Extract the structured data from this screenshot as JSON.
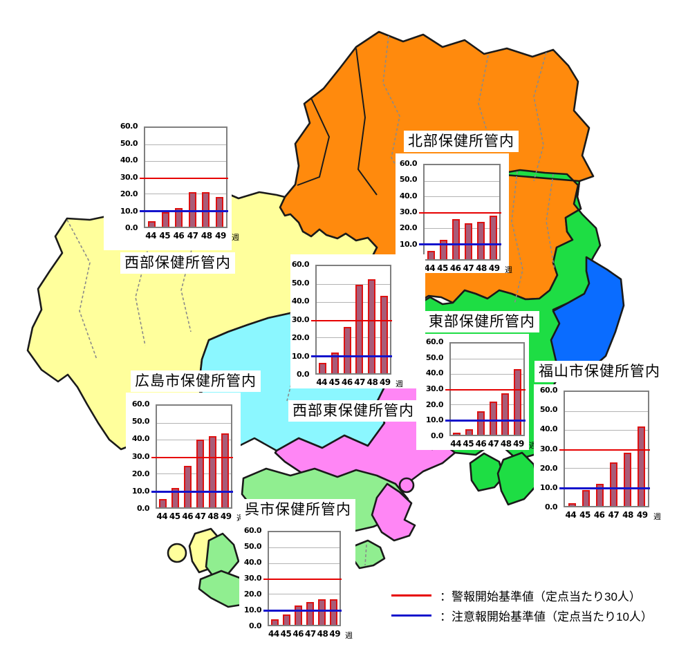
{
  "axis": {
    "y_max": 60,
    "y_ticks": [
      "60.0",
      "50.0",
      "40.0",
      "30.0",
      "20.0",
      "10.0",
      "0.0"
    ],
    "x_ticks": [
      "44",
      "45",
      "46",
      "47",
      "48",
      "49"
    ],
    "x_unit": "週"
  },
  "legend": {
    "alert_label": "：警報開始基準値（定点当たり30人）",
    "advisory_label": "：注意報開始基準値（定点当たり10人）",
    "alert_color": "#e60000",
    "advisory_color": "#1414cc"
  },
  "bars": {
    "fill": "#a85c78",
    "border": "#dd1111"
  },
  "chart_data": [
    {
      "id": "seibu",
      "region": "西部保健所管内",
      "type": "bar",
      "x": [
        44,
        45,
        46,
        47,
        48,
        49
      ],
      "values": [
        3.5,
        9.0,
        11.5,
        21.0,
        21.0,
        18.0
      ],
      "ylim": [
        0,
        60
      ],
      "alert_line": 30,
      "advisory_line": 10
    },
    {
      "id": "hokubu",
      "region": "北部保健所管内",
      "type": "bar",
      "x": [
        44,
        45,
        46,
        47,
        48,
        49
      ],
      "values": [
        5.5,
        12.5,
        25.5,
        23.0,
        24.0,
        28.0
      ],
      "ylim": [
        0,
        60
      ],
      "alert_line": 30,
      "advisory_line": 10
    },
    {
      "id": "seibuhigashi",
      "region": "西部東保健所管内",
      "type": "bar",
      "x": [
        44,
        45,
        46,
        47,
        48,
        49
      ],
      "values": [
        6.0,
        11.5,
        26.0,
        49.5,
        52.5,
        43.5
      ],
      "ylim": [
        0,
        60
      ],
      "alert_line": 30,
      "advisory_line": 10
    },
    {
      "id": "tobu",
      "region": "東部保健所管内",
      "type": "bar",
      "x": [
        44,
        45,
        46,
        47,
        48,
        49
      ],
      "values": [
        1.5,
        3.5,
        15.5,
        22.0,
        27.5,
        43.0
      ],
      "ylim": [
        0,
        60
      ],
      "alert_line": 30,
      "advisory_line": 10
    },
    {
      "id": "fukuyama",
      "region": "福山市保健所管内",
      "type": "bar",
      "x": [
        44,
        45,
        46,
        47,
        48,
        49
      ],
      "values": [
        1.5,
        8.5,
        11.5,
        23.0,
        28.0,
        42.0
      ],
      "ylim": [
        0,
        60
      ],
      "alert_line": 30,
      "advisory_line": 10
    },
    {
      "id": "hiroshima",
      "region": "広島市保健所管内",
      "type": "bar",
      "x": [
        44,
        45,
        46,
        47,
        48,
        49
      ],
      "values": [
        5.0,
        11.5,
        24.5,
        40.0,
        42.0,
        43.5
      ],
      "ylim": [
        0,
        60
      ],
      "alert_line": 30,
      "advisory_line": 10
    },
    {
      "id": "kure",
      "region": "呉市保健所管内",
      "type": "bar",
      "x": [
        44,
        45,
        46,
        47,
        48,
        49
      ],
      "values": [
        3.5,
        6.5,
        12.5,
        15.0,
        16.5,
        16.5
      ],
      "ylim": [
        0,
        60
      ],
      "alert_line": 30,
      "advisory_line": 10
    }
  ],
  "map": {
    "outline_color": "#1a1a1a",
    "inner_border_color": "#8a8a8a",
    "sea_color": "#ffffff",
    "region_colors": {
      "hokubu": "#ff8a0d",
      "seibu": "#ffff9c",
      "tobu": "#1edd44",
      "fukuyama": "#0a6cff",
      "hiroshima": "#8bf7ff",
      "seibuhigashi": "#ff86f5",
      "kure": "#90ee90"
    }
  }
}
